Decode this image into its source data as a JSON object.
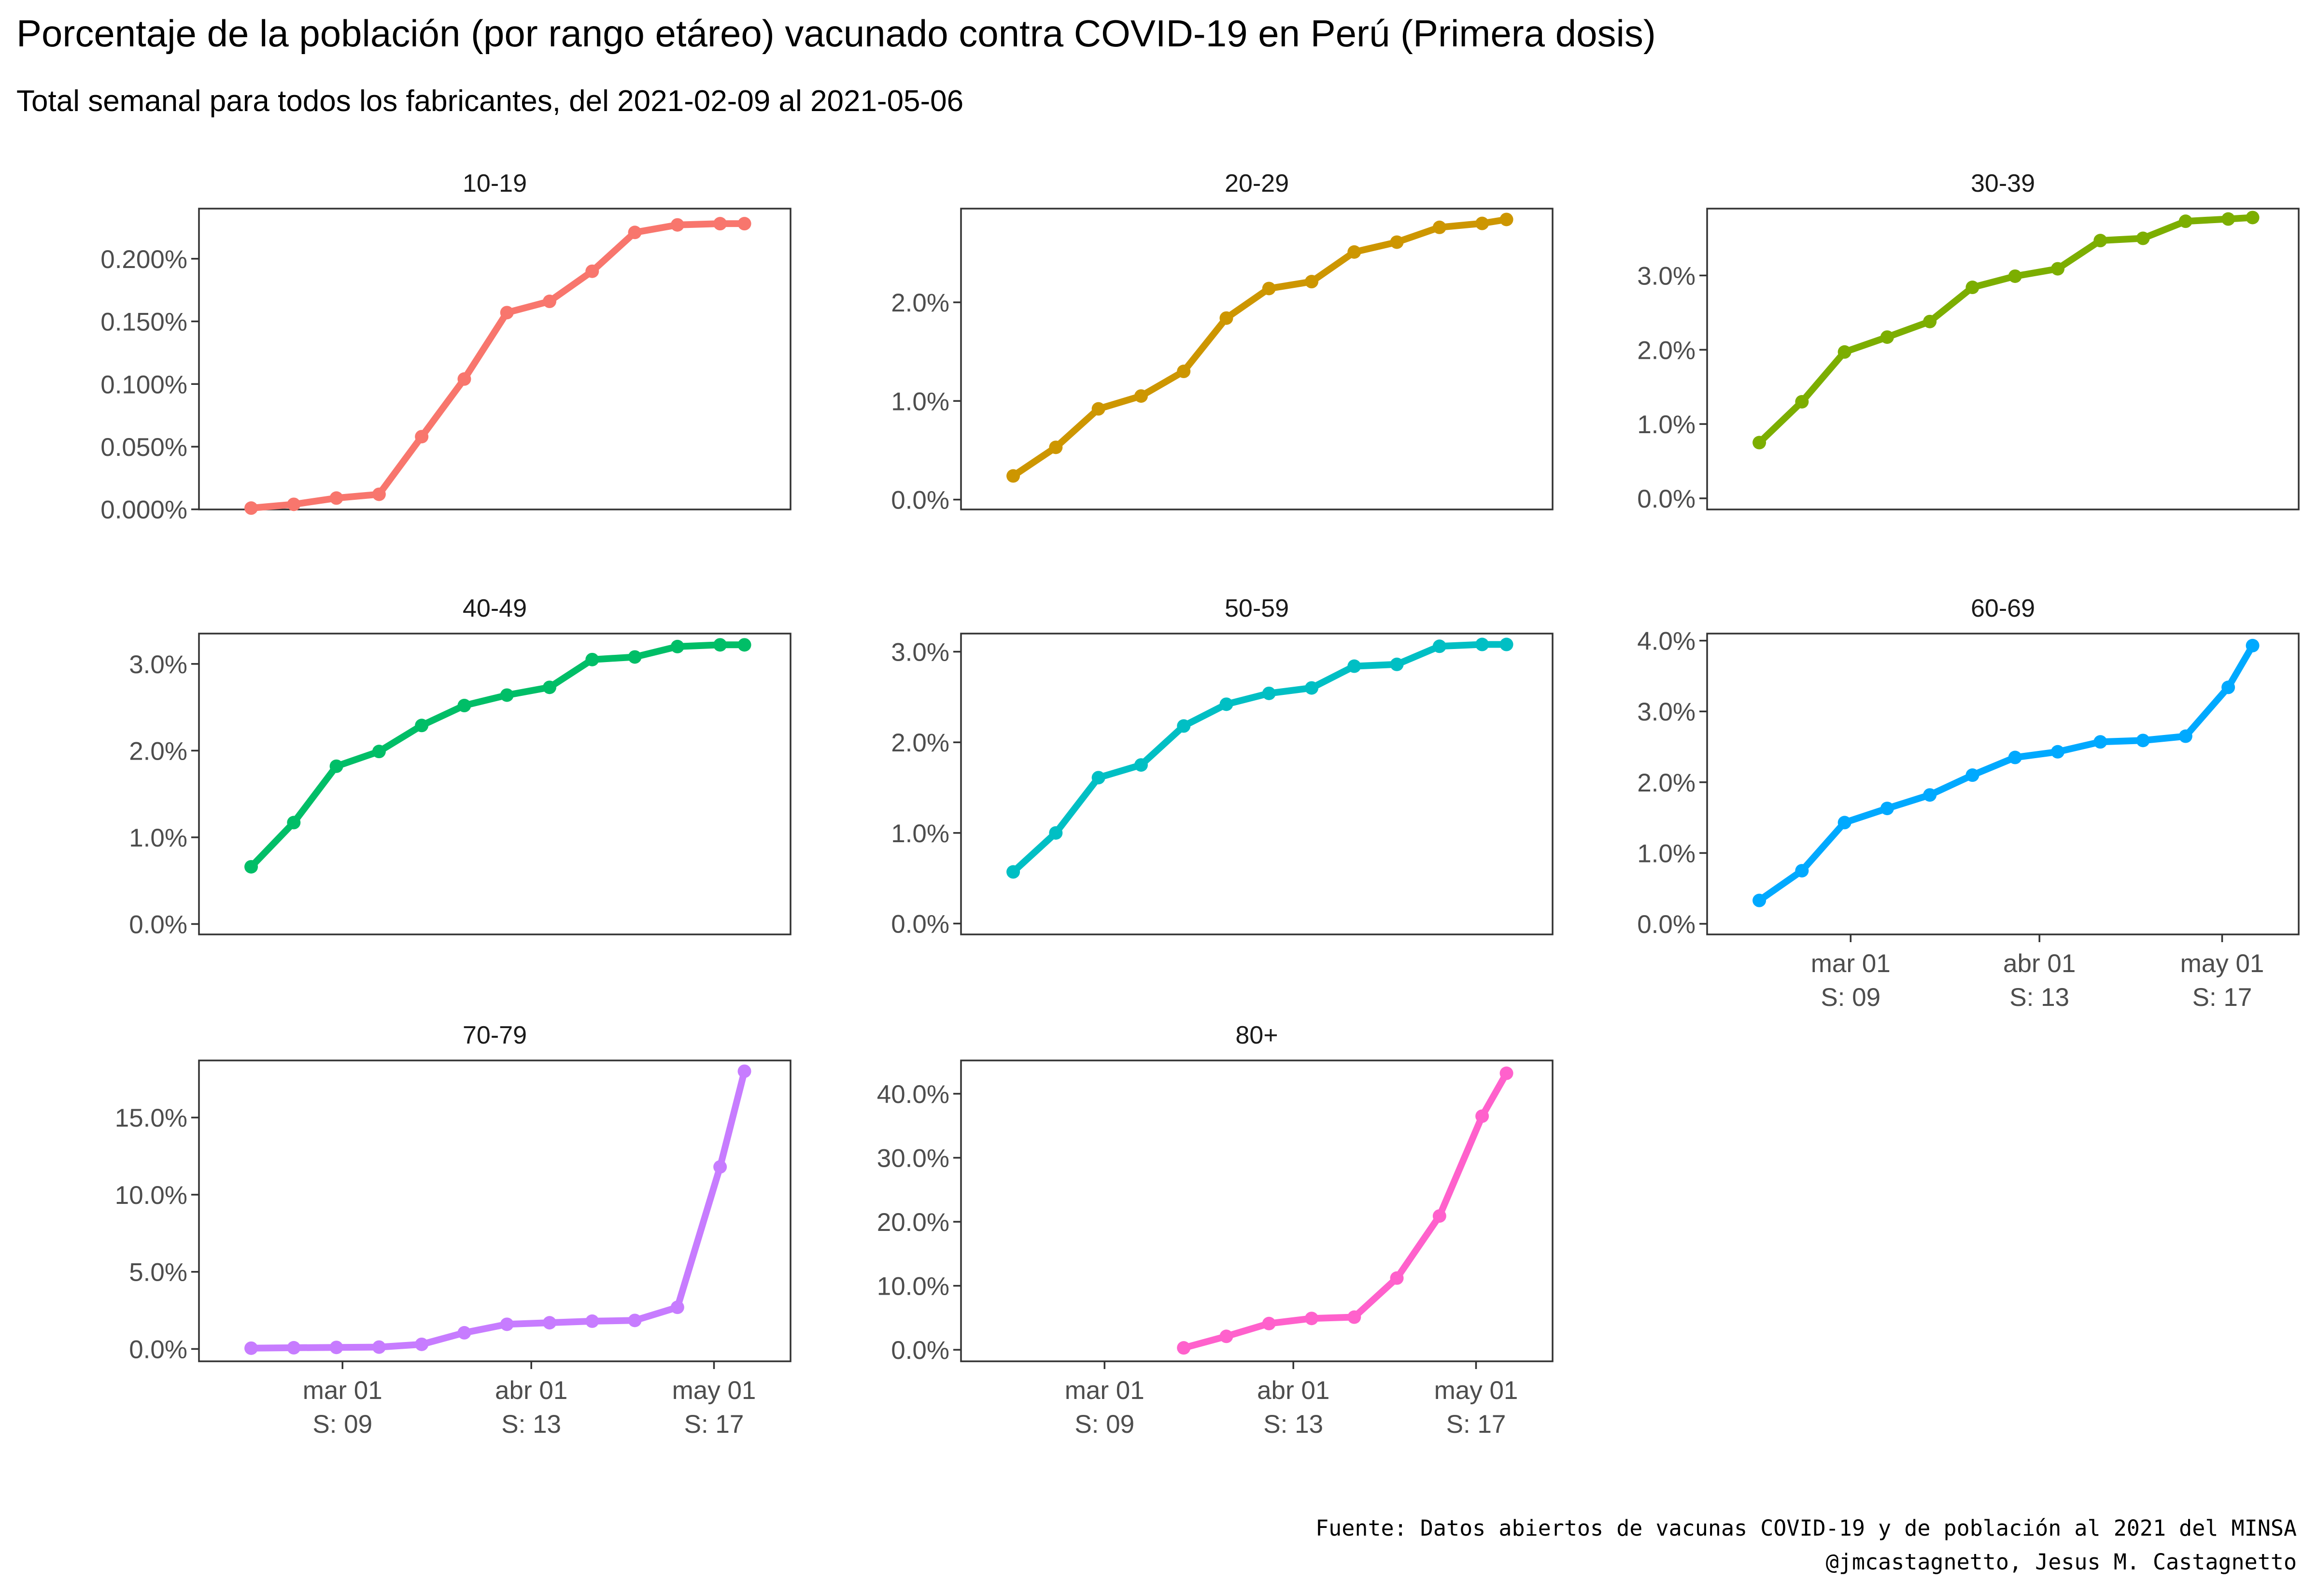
{
  "title": "Porcentaje de la población (por rango etáreo) vacunado contra COVID-19 en Perú (Primera dosis)",
  "subtitle": "Total semanal para todos los fabricantes, del 2021-02-09 al 2021-05-06",
  "caption": [
    "Fuente: Datos abiertos de vacunas COVID-19 y de población al 2021 del MINSA",
    "@jmcastagnetto, Jesus M. Castagnetto"
  ],
  "chart_data": {
    "type": "line",
    "facet_layout": "3 columns, 3 rows, independent y-axes, shared x-axis",
    "x_unit": "date (week end)",
    "y_unit": "percent of population",
    "x": [
      "2021-02-14",
      "2021-02-21",
      "2021-02-28",
      "2021-03-07",
      "2021-03-14",
      "2021-03-21",
      "2021-03-28",
      "2021-04-04",
      "2021-04-11",
      "2021-04-18",
      "2021-04-25",
      "2021-05-02",
      "2021-05-06"
    ],
    "x_ticks": [
      {
        "date": "2021-03-01",
        "label": "mar 01",
        "sublabel": "S: 09"
      },
      {
        "date": "2021-04-01",
        "label": "abr 01",
        "sublabel": "S: 13"
      },
      {
        "date": "2021-05-01",
        "label": "may 01",
        "sublabel": "S: 17"
      }
    ],
    "xlim": [
      "2021-02-09",
      "2021-05-10"
    ],
    "grid": false,
    "legend": "none",
    "panels": [
      {
        "label": "10-19",
        "color": "#F8766D",
        "ylim": [
          -0.0001,
          0.24
        ],
        "y_ticks": [
          0,
          0.05,
          0.1,
          0.15,
          0.2
        ],
        "y_tick_labels": [
          "0.000%",
          "0.050%",
          "0.100%",
          "0.150%",
          "0.200%"
        ],
        "values": [
          0.001,
          0.004,
          0.009,
          0.012,
          0.058,
          0.104,
          0.157,
          0.166,
          0.19,
          0.221,
          0.227,
          0.228,
          0.228
        ]
      },
      {
        "label": "20-29",
        "color": "#CD9600",
        "ylim": [
          -0.1,
          2.95
        ],
        "y_ticks": [
          0,
          1,
          2
        ],
        "y_tick_labels": [
          "0.0%",
          "1.0%",
          "2.0%"
        ],
        "values": [
          0.24,
          0.53,
          0.92,
          1.05,
          1.3,
          1.84,
          2.14,
          2.21,
          2.51,
          2.61,
          2.76,
          2.8,
          2.84
        ]
      },
      {
        "label": "30-39",
        "color": "#7CAE00",
        "ylim": [
          -0.15,
          3.9
        ],
        "y_ticks": [
          0,
          1,
          2,
          3
        ],
        "y_tick_labels": [
          "0.0%",
          "1.0%",
          "2.0%",
          "3.0%"
        ],
        "values": [
          0.75,
          1.3,
          1.97,
          2.17,
          2.38,
          2.84,
          2.99,
          3.09,
          3.47,
          3.5,
          3.73,
          3.76,
          3.78
        ]
      },
      {
        "label": "40-49",
        "color": "#00BE67",
        "ylim": [
          -0.12,
          3.35
        ],
        "y_ticks": [
          0,
          1,
          2,
          3
        ],
        "y_tick_labels": [
          "0.0%",
          "1.0%",
          "2.0%",
          "3.0%"
        ],
        "values": [
          0.66,
          1.17,
          1.82,
          1.99,
          2.29,
          2.52,
          2.64,
          2.73,
          3.05,
          3.08,
          3.2,
          3.22,
          3.22
        ]
      },
      {
        "label": "50-59",
        "color": "#00BFC4",
        "ylim": [
          -0.12,
          3.2
        ],
        "y_ticks": [
          0,
          1,
          2,
          3
        ],
        "y_tick_labels": [
          "0.0%",
          "1.0%",
          "2.0%",
          "3.0%"
        ],
        "values": [
          0.57,
          1.0,
          1.61,
          1.75,
          2.18,
          2.42,
          2.54,
          2.6,
          2.84,
          2.86,
          3.06,
          3.08,
          3.08
        ]
      },
      {
        "label": "60-69",
        "color": "#00A9FF",
        "ylim": [
          -0.15,
          4.1
        ],
        "y_ticks": [
          0,
          1,
          2,
          3,
          4
        ],
        "y_tick_labels": [
          "0.0%",
          "1.0%",
          "2.0%",
          "3.0%",
          "4.0%"
        ],
        "values": [
          0.33,
          0.75,
          1.43,
          1.63,
          1.82,
          2.1,
          2.35,
          2.43,
          2.57,
          2.59,
          2.65,
          3.34,
          3.93
        ]
      },
      {
        "label": "70-79",
        "color": "#C77CFF",
        "ylim": [
          -0.8,
          18.7
        ],
        "y_ticks": [
          0,
          5,
          10,
          15
        ],
        "y_tick_labels": [
          "0.0%",
          "5.0%",
          "10.0%",
          "15.0%"
        ],
        "values": [
          0.05,
          0.08,
          0.1,
          0.12,
          0.3,
          1.05,
          1.6,
          1.7,
          1.8,
          1.85,
          2.7,
          11.8,
          18.0
        ]
      },
      {
        "label": "80+",
        "color": "#FF61CC",
        "ylim": [
          -1.8,
          45.2
        ],
        "y_ticks": [
          0,
          10,
          20,
          30,
          40
        ],
        "y_tick_labels": [
          "0.0%",
          "10.0%",
          "20.0%",
          "30.0%",
          "40.0%"
        ],
        "values": [
          null,
          null,
          null,
          null,
          0.3,
          2.1,
          4.1,
          4.9,
          5.1,
          11.2,
          20.9,
          36.5,
          43.2
        ]
      }
    ]
  }
}
